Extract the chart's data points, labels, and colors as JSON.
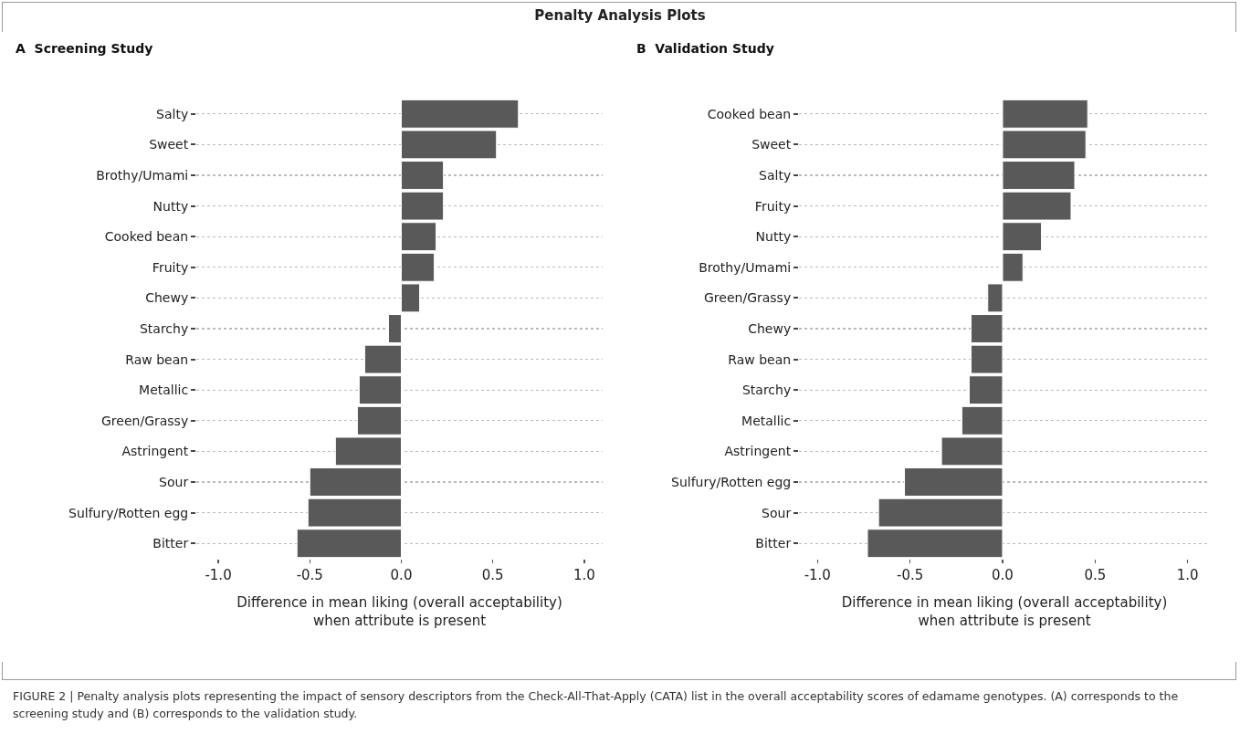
{
  "chart_data": [
    {
      "type": "bar",
      "orientation": "horizontal",
      "title": "A  Screening Study",
      "xlabel": "Difference in mean liking (overall acceptability)\nwhen attribute is present",
      "categories": [
        "Salty",
        "Sweet",
        "Brothy/Umami",
        "Nutty",
        "Cooked bean",
        "Fruity",
        "Chewy",
        "Starchy",
        "Raw bean",
        "Metallic",
        "Green/Grassy",
        "Astringent",
        "Sour",
        "Sulfury/Rotten egg",
        "Bitter"
      ],
      "values": [
        0.64,
        0.52,
        0.23,
        0.23,
        0.19,
        0.18,
        0.1,
        -0.07,
        -0.2,
        -0.23,
        -0.24,
        -0.36,
        -0.5,
        -0.51,
        -0.57
      ],
      "color": "#595959",
      "xlim": [
        -1.12,
        1.1
      ],
      "xticks": [
        {
          "value": -1,
          "label": "-1.0"
        },
        {
          "value": -0.5,
          "label": "-0.5"
        },
        {
          "value": 0,
          "label": "0.0"
        },
        {
          "value": 0.5,
          "label": "0.5"
        },
        {
          "value": 1,
          "label": "1.0"
        }
      ],
      "grid": "y",
      "annotations": [
        "Penalty Analysis Plots",
        "FIGURE 2 | Penalty analysis plots representing the impact of sensory descriptors from the Check-All-That-Apply (CATA) list in the overall acceptability scores of edamame genotypes. (A) corresponds to the screening study and (B) corresponds to the validation study."
      ]
    },
    {
      "type": "bar",
      "orientation": "horizontal",
      "title": "B  Validation Study",
      "xlabel": "Difference in mean liking (overall acceptability)\nwhen attribute is present",
      "categories": [
        "Cooked bean",
        "Sweet",
        "Salty",
        "Fruity",
        "Nutty",
        "Brothy/Umami",
        "Green/Grassy",
        "Chewy",
        "Raw bean",
        "Starchy",
        "Metallic",
        "Astringent",
        "Sulfury/Rotten egg",
        "Sour",
        "Bitter"
      ],
      "values": [
        0.46,
        0.45,
        0.39,
        0.37,
        0.21,
        0.11,
        -0.08,
        -0.17,
        -0.17,
        -0.18,
        -0.22,
        -0.33,
        -0.53,
        -0.67,
        -0.73
      ],
      "color": "#595959",
      "xlim": [
        -1.1,
        1.12
      ],
      "xticks": [
        {
          "value": -1,
          "label": "-1.0"
        },
        {
          "value": -0.5,
          "label": "-0.5"
        },
        {
          "value": 0,
          "label": "0.0"
        },
        {
          "value": 0.5,
          "label": "0.5"
        },
        {
          "value": 1,
          "label": "1.0"
        }
      ],
      "grid": "y"
    }
  ]
}
